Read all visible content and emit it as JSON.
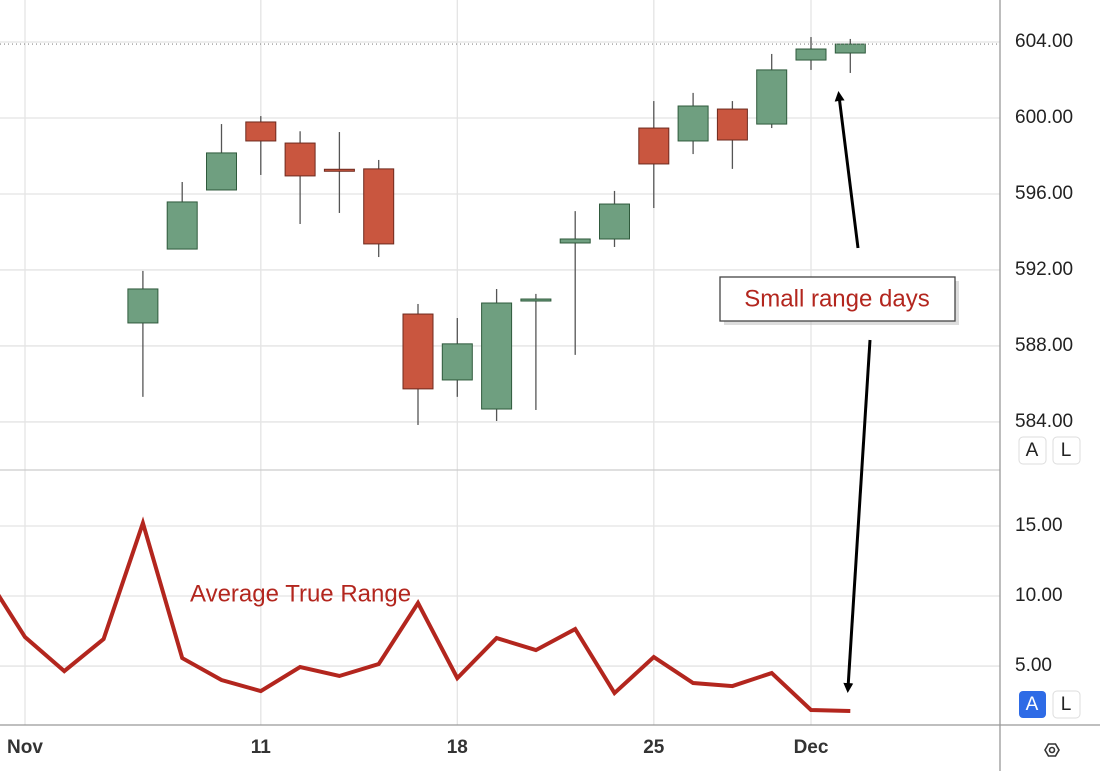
{
  "chart_data": [
    {
      "type": "candlestick",
      "open": [
        null,
        null,
        null,
        null,
        589.21,
        593.1,
        596.21,
        599.79,
        598.68,
        597.3,
        597.32,
        589.68,
        586.21,
        584.68,
        590.37,
        593.42,
        593.63,
        599.47,
        598.79,
        600.47,
        599.68,
        603.05,
        603.42
      ],
      "high": [
        null,
        null,
        null,
        null,
        591.95,
        596.63,
        599.68,
        600.1,
        599.3,
        599.26,
        597.79,
        590.21,
        589.47,
        591.0,
        590.74,
        595.1,
        596.16,
        600.89,
        601.32,
        600.89,
        603.37,
        604.26,
        604.16
      ],
      "low": [
        null,
        null,
        null,
        null,
        585.32,
        593.1,
        596.21,
        597.0,
        594.42,
        595.0,
        592.68,
        583.84,
        585.32,
        584.05,
        584.63,
        587.53,
        593.21,
        595.26,
        598.1,
        597.32,
        599.47,
        602.53,
        602.37
      ],
      "close": [
        null,
        null,
        null,
        null,
        591.0,
        595.58,
        598.16,
        598.79,
        596.95,
        597.2,
        593.37,
        585.74,
        588.11,
        590.26,
        590.47,
        593.63,
        595.47,
        597.58,
        600.63,
        598.84,
        602.53,
        603.63,
        603.89
      ],
      "up_color": "#6f9f80",
      "down_color": "#c9563f",
      "ylim": [
        581.47,
        606.21
      ],
      "yticks": [
        {
          "value": 604,
          "label": "604.00"
        },
        {
          "value": 600,
          "label": "600.00"
        },
        {
          "value": 596,
          "label": "596.00"
        },
        {
          "value": 592,
          "label": "592.00"
        },
        {
          "value": 588,
          "label": "588.00"
        },
        {
          "value": 584,
          "label": "584.00"
        }
      ],
      "grid": true,
      "annotation": "Small range days",
      "scale_buttons": [
        "A",
        "L"
      ]
    },
    {
      "type": "line",
      "categories": [
        null,
        "Nov",
        null,
        null,
        null,
        null,
        null,
        "11",
        null,
        null,
        null,
        null,
        "18",
        null,
        null,
        null,
        null,
        "25",
        null,
        null,
        null,
        "Dec",
        null
      ],
      "series": [
        {
          "name": "Average True Range",
          "color": "#b3261e",
          "values": [
            11.5,
            7.07,
            4.64,
            6.93,
            15.21,
            5.57,
            4.0,
            3.21,
            4.93,
            4.29,
            5.14,
            9.5,
            4.14,
            7.0,
            6.14,
            7.64,
            3.07,
            5.64,
            3.79,
            3.57,
            4.5,
            1.86,
            1.79
          ]
        }
      ],
      "ylim": [
        0.79,
        19
      ],
      "yticks": [
        {
          "value": 15,
          "label": "15.00"
        },
        {
          "value": 10,
          "label": "10.00"
        },
        {
          "value": 5,
          "label": "5.00"
        }
      ],
      "grid": true,
      "scale_buttons": [
        "A",
        "L"
      ]
    }
  ]
}
